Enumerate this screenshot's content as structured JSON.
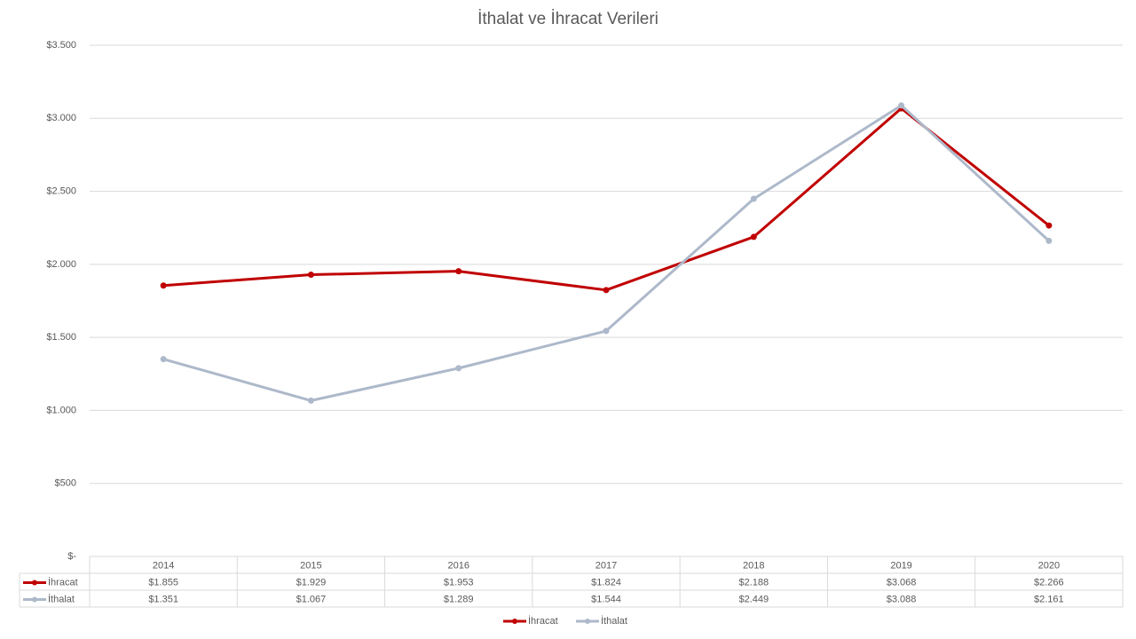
{
  "chart_data": {
    "type": "line",
    "title": "İthalat ve İhracat Verileri",
    "categories": [
      "2014",
      "2015",
      "2016",
      "2017",
      "2018",
      "2019",
      "2020"
    ],
    "series": [
      {
        "name": "İhracat",
        "color": "#c00000",
        "values": [
          1855,
          1929,
          1953,
          1824,
          2188,
          3068,
          2266
        ],
        "value_labels": [
          "$1.855",
          "$1.929",
          "$1.953",
          "$1.824",
          "$2.188",
          "$3.068",
          "$2.266"
        ]
      },
      {
        "name": "İthalat",
        "color": "#adb9ca",
        "values": [
          1351,
          1067,
          1289,
          1544,
          2449,
          3088,
          2161
        ],
        "value_labels": [
          "$1.351",
          "$1.067",
          "$1.289",
          "$1.544",
          "$2.449",
          "$3.088",
          "$2.161"
        ]
      }
    ],
    "ylim": [
      0,
      3500
    ],
    "yticks": [
      {
        "value": 0,
        "label": "$-"
      },
      {
        "value": 500,
        "label": "$500"
      },
      {
        "value": 1000,
        "label": "$1.000"
      },
      {
        "value": 1500,
        "label": "$1.500"
      },
      {
        "value": 2000,
        "label": "$2.000"
      },
      {
        "value": 2500,
        "label": "$2.500"
      },
      {
        "value": 3000,
        "label": "$3.000"
      },
      {
        "value": 3500,
        "label": "$3.500"
      }
    ],
    "grid": true,
    "legend": "bottom",
    "data_table": true
  }
}
